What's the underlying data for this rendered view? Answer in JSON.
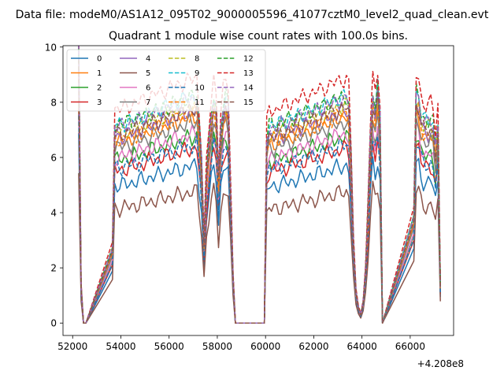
{
  "figure": {
    "suptitle": "Data file: modeM0/AS1A12_095T02_9000005596_41077cztM0_level2_quad_clean.evt"
  },
  "chart_data": {
    "type": "line",
    "title": "Quadrant 1 module wise count rates with 100.0s bins.",
    "xlabel": "",
    "ylabel": "",
    "x_offset_label": "+4.208e8",
    "xlim": [
      51600,
      67800
    ],
    "ylim": [
      -0.45,
      10.05
    ],
    "xticks": [
      52000,
      54000,
      56000,
      58000,
      60000,
      62000,
      64000,
      66000
    ],
    "xtick_labels": [
      "52000",
      "54000",
      "56000",
      "58000",
      "60000",
      "62000",
      "64000",
      "66000"
    ],
    "yticks": [
      0,
      2,
      4,
      6,
      8,
      10
    ],
    "ytick_labels": [
      "0",
      "2",
      "4",
      "6",
      "8",
      "10"
    ],
    "grid": false,
    "legend": {
      "location": "top-left",
      "columns": 4,
      "entries": [
        "0",
        "1",
        "2",
        "3",
        "4",
        "5",
        "6",
        "7",
        "8",
        "9",
        "10",
        "11",
        "12",
        "13",
        "14",
        "15"
      ]
    },
    "x": [
      52250,
      52350,
      52450,
      52550,
      53650,
      53750,
      53850,
      53950,
      54050,
      54150,
      54250,
      54350,
      54450,
      54550,
      54650,
      54750,
      54850,
      54950,
      55050,
      55150,
      55250,
      55350,
      55450,
      55550,
      55650,
      55750,
      55850,
      55950,
      56050,
      56150,
      56250,
      56350,
      56450,
      56550,
      56650,
      56750,
      56850,
      56950,
      57050,
      57150,
      57250,
      57350,
      57450,
      57550,
      57650,
      57750,
      57850,
      57950,
      58050,
      58150,
      58250,
      58350,
      58450,
      58550,
      58650,
      58750,
      59950,
      60050,
      60150,
      60250,
      60350,
      60450,
      60550,
      60650,
      60750,
      60850,
      60950,
      61050,
      61150,
      61250,
      61350,
      61450,
      61550,
      61650,
      61750,
      61850,
      61950,
      62050,
      62150,
      62250,
      62350,
      62450,
      62550,
      62650,
      62750,
      62850,
      62950,
      63050,
      63150,
      63250,
      63350,
      63450,
      63550,
      63650,
      63750,
      63850,
      63950,
      64050,
      64150,
      64250,
      64350,
      64450,
      64550,
      64650,
      64750,
      64850,
      66150,
      66250,
      66350,
      66450,
      66550,
      66650,
      66750,
      66850,
      66950,
      67050,
      67150,
      67250
    ],
    "shape": [
      2.55,
      0.35,
      0,
      0,
      0.7,
      1.85,
      1.85,
      1.85,
      1.85,
      1.86,
      1.87,
      1.88,
      1.88,
      1.89,
      1.9,
      1.91,
      1.92,
      1.93,
      1.94,
      1.95,
      1.96,
      1.97,
      1.98,
      1.98,
      1.99,
      2.0,
      2.01,
      2.02,
      2.03,
      2.04,
      2.05,
      2.05,
      2.06,
      2.07,
      2.08,
      2.09,
      2.1,
      2.1,
      2.11,
      2.12,
      1.82,
      1.47,
      0.75,
      1.38,
      1.67,
      1.94,
      2.12,
      2.0,
      1.35,
      1.8,
      2.02,
      2.1,
      2.05,
      1.25,
      0.45,
      0,
      0,
      1.72,
      1.84,
      1.84,
      1.84,
      1.84,
      1.86,
      1.87,
      1.87,
      1.88,
      1.89,
      1.9,
      1.91,
      1.92,
      1.93,
      1.94,
      1.95,
      1.96,
      1.97,
      1.98,
      1.98,
      1.99,
      2.0,
      2.01,
      2.02,
      2.03,
      2.04,
      2.05,
      2.06,
      2.07,
      2.08,
      2.09,
      2.1,
      2.1,
      2.11,
      2.06,
      1.5,
      0.75,
      0.3,
      0.15,
      0.08,
      0.2,
      0.5,
      1.05,
      1.75,
      2.15,
      2.0,
      2.2,
      1.9,
      0,
      1.0,
      2.15,
      2.12,
      1.95,
      1.9,
      1.88,
      1.88,
      1.9,
      1.85,
      1.65,
      1.88,
      0.35
    ],
    "series": [
      {
        "name": "0",
        "base": 2.7,
        "color": "#1f77b4",
        "dash": "solid"
      },
      {
        "name": "1",
        "base": 3.55,
        "color": "#ff7f0e",
        "dash": "solid"
      },
      {
        "name": "2",
        "base": 3.2,
        "color": "#2ca02c",
        "dash": "solid"
      },
      {
        "name": "3",
        "base": 3.0,
        "color": "#d62728",
        "dash": "solid"
      },
      {
        "name": "4",
        "base": 3.65,
        "color": "#9467bd",
        "dash": "solid"
      },
      {
        "name": "5",
        "base": 2.25,
        "color": "#8c564b",
        "dash": "solid"
      },
      {
        "name": "6",
        "base": 3.25,
        "color": "#e377c2",
        "dash": "solid"
      },
      {
        "name": "7",
        "base": 3.45,
        "color": "#7f7f7f",
        "dash": "solid"
      },
      {
        "name": "8",
        "base": 3.75,
        "color": "#bcbd22",
        "dash": "dashed"
      },
      {
        "name": "9",
        "base": 3.9,
        "color": "#17becf",
        "dash": "dashed"
      },
      {
        "name": "10",
        "base": 3.05,
        "color": "#1f77b4",
        "dash": "dashed"
      },
      {
        "name": "11",
        "base": 3.6,
        "color": "#ff7f0e",
        "dash": "dashed"
      },
      {
        "name": "12",
        "base": 3.9,
        "color": "#2ca02c",
        "dash": "dashed"
      },
      {
        "name": "13",
        "base": 4.2,
        "color": "#d62728",
        "dash": "dashed"
      },
      {
        "name": "14",
        "base": 3.85,
        "color": "#9467bd",
        "dash": "dashed"
      },
      {
        "name": "15",
        "base": 3.7,
        "color": "#8c564b",
        "dash": "dashed"
      }
    ]
  }
}
